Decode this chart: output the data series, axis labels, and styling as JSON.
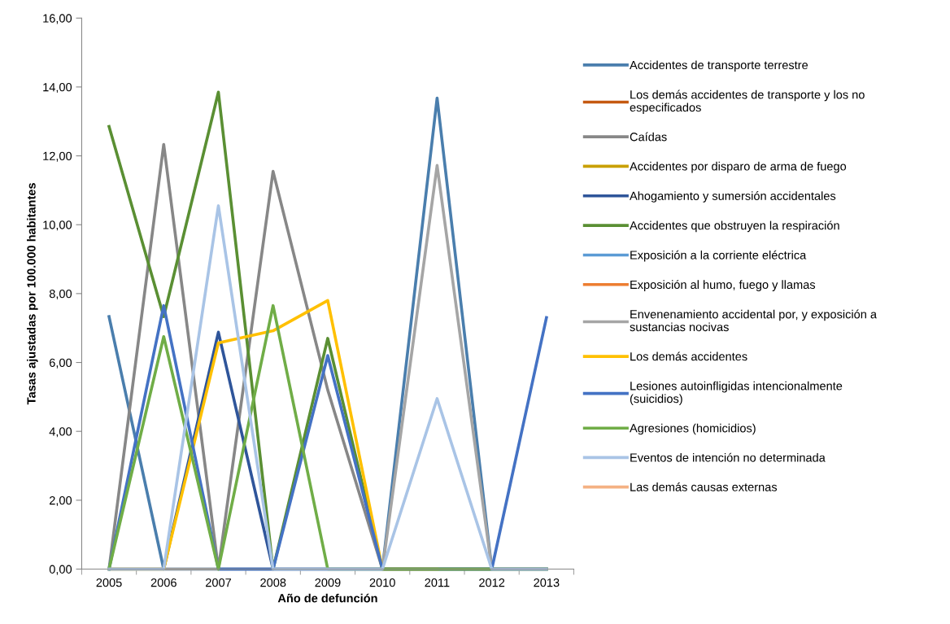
{
  "chart_data": {
    "type": "line",
    "xlabel": "Año de defunción",
    "ylabel": "Tasas ajustadas por 100.000 habitantes",
    "categories": [
      "2005",
      "2006",
      "2007",
      "2008",
      "2009",
      "2010",
      "2011",
      "2012",
      "2013"
    ],
    "ylim": [
      0,
      16
    ],
    "yticks": [
      {
        "value": 0,
        "label": "0,00"
      },
      {
        "value": 2,
        "label": "2,00"
      },
      {
        "value": 4,
        "label": "4,00"
      },
      {
        "value": 6,
        "label": "6,00"
      },
      {
        "value": 8,
        "label": "8,00"
      },
      {
        "value": 10,
        "label": "10,00"
      },
      {
        "value": 12,
        "label": "12,00"
      },
      {
        "value": 14,
        "label": "14,00"
      },
      {
        "value": 16,
        "label": "16,00"
      }
    ],
    "grid": false,
    "legend": "right",
    "marker": "none",
    "line_style": "solid",
    "series": [
      {
        "name": "Accidentes de transporte terrestre",
        "color": "#4a7ead",
        "values": [
          7.33,
          0,
          0,
          0,
          0,
          0,
          13.68,
          0,
          0
        ]
      },
      {
        "name": "Los demás accidentes de transporte y los no especificados",
        "color": "#c55a11",
        "values": [
          null,
          null,
          null,
          null,
          null,
          null,
          null,
          null,
          null
        ]
      },
      {
        "name": "Caídas",
        "color": "#878787",
        "values": [
          0,
          12.33,
          0,
          11.55,
          5.2,
          0,
          0,
          0,
          0
        ]
      },
      {
        "name": "Accidentes por disparo de arma de fuego",
        "color": "#c9a000",
        "values": [
          null,
          null,
          null,
          null,
          null,
          null,
          null,
          null,
          null
        ]
      },
      {
        "name": "Ahogamiento y sumersión accidentales",
        "color": "#2f559a",
        "values": [
          0,
          0,
          6.88,
          0,
          0,
          0,
          0,
          0,
          0
        ]
      },
      {
        "name": "Accidentes que obstruyen la respiración",
        "color": "#5a8f33",
        "values": [
          12.85,
          7.33,
          13.85,
          0,
          6.7,
          0,
          0,
          0,
          0
        ]
      },
      {
        "name": "Exposición a la corriente eléctrica",
        "color": "#5b9bd5",
        "values": [
          null,
          null,
          null,
          null,
          null,
          null,
          null,
          null,
          null
        ]
      },
      {
        "name": "Exposición al humo, fuego y llamas",
        "color": "#ed7d31",
        "values": [
          null,
          null,
          null,
          null,
          null,
          null,
          null,
          null,
          null
        ]
      },
      {
        "name": "Envenenamiento accidental por, y exposición a sustancias nocivas",
        "color": "#a5a5a5",
        "values": [
          0,
          0,
          0,
          0,
          0,
          0,
          11.72,
          0,
          0
        ]
      },
      {
        "name": "Los demás accidentes",
        "color": "#ffc000",
        "values": [
          0,
          0,
          6.57,
          6.92,
          7.8,
          0,
          0,
          null,
          null
        ]
      },
      {
        "name": "Lesiones autoinfligidas intencionalmente (suicidios)",
        "color": "#4472c4",
        "values": [
          0,
          7.65,
          0,
          0,
          6.2,
          0,
          0,
          0,
          7.3
        ]
      },
      {
        "name": "Agresiones (homicidios)",
        "color": "#70ad47",
        "values": [
          0,
          6.75,
          0,
          7.65,
          0,
          0,
          0,
          0,
          0
        ]
      },
      {
        "name": "Eventos de intención no determinada",
        "color": "#a9c4e6",
        "values": [
          0,
          0,
          10.55,
          0,
          0,
          0,
          4.95,
          0,
          0
        ]
      },
      {
        "name": "Las demás causas externas",
        "color": "#f4b183",
        "values": [
          null,
          null,
          null,
          null,
          null,
          null,
          null,
          null,
          null
        ]
      }
    ]
  }
}
